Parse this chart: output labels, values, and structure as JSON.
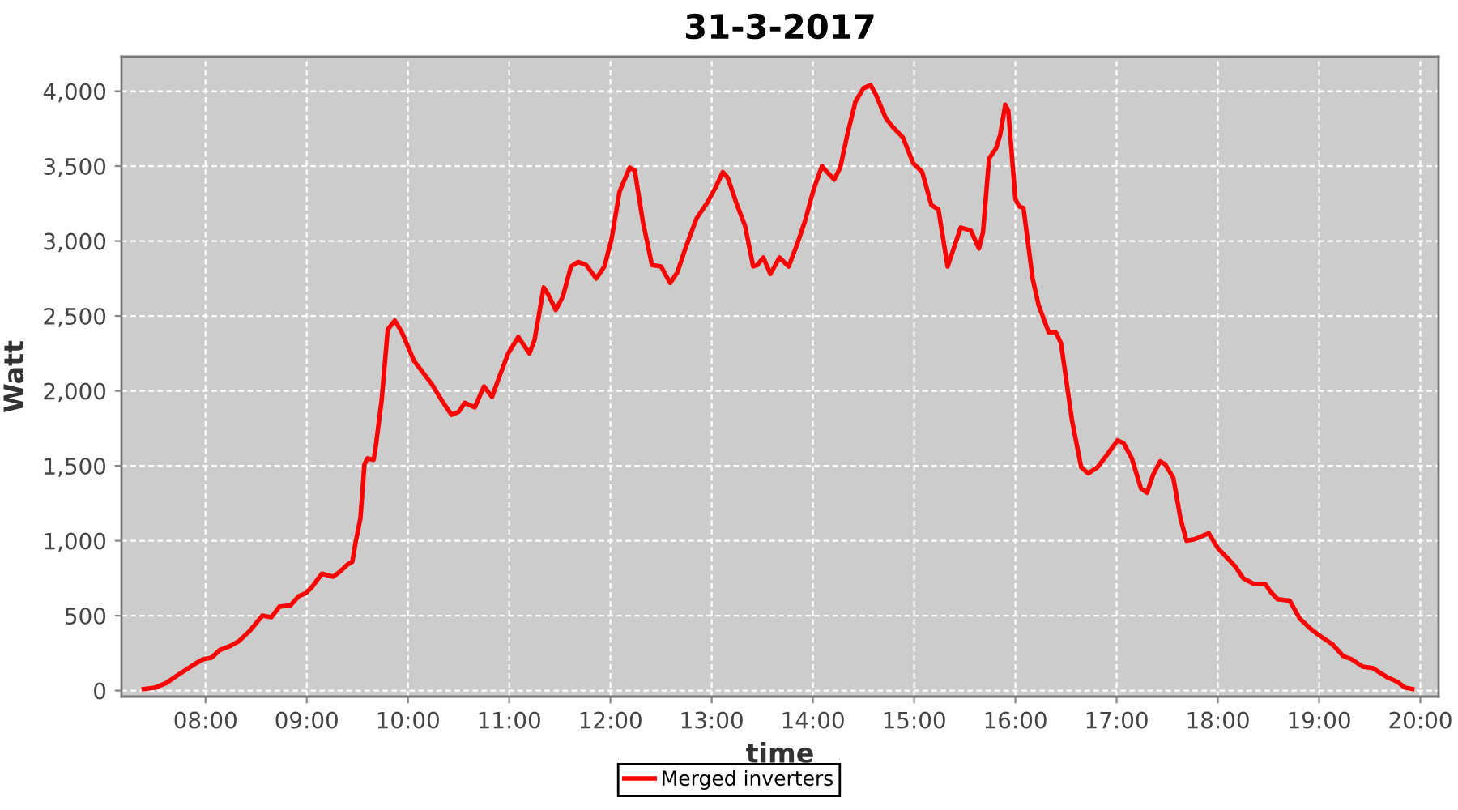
{
  "chart_data": {
    "type": "line",
    "title": "31-3-2017",
    "xlabel": "time",
    "ylabel": "Watt",
    "series": [
      {
        "name": "Merged inverters",
        "color": "#ff0000",
        "x": [
          7.39,
          7.5,
          7.61,
          7.74,
          7.9,
          7.98,
          8.06,
          8.14,
          8.25,
          8.33,
          8.44,
          8.56,
          8.65,
          8.73,
          8.84,
          8.92,
          8.99,
          9.05,
          9.15,
          9.26,
          9.32,
          9.4,
          9.45,
          9.48,
          9.53,
          9.57,
          9.6,
          9.66,
          9.68,
          9.74,
          9.8,
          9.87,
          9.94,
          10.06,
          10.23,
          10.34,
          10.43,
          10.5,
          10.56,
          10.66,
          10.75,
          10.83,
          10.9,
          10.99,
          11.09,
          11.2,
          11.25,
          11.34,
          11.38,
          11.46,
          11.53,
          11.61,
          11.68,
          11.76,
          11.86,
          11.94,
          12.01,
          12.09,
          12.19,
          12.24,
          12.32,
          12.41,
          12.5,
          12.59,
          12.66,
          12.74,
          12.85,
          12.96,
          13.04,
          13.11,
          13.16,
          13.24,
          13.33,
          13.41,
          13.45,
          13.51,
          13.58,
          13.67,
          13.76,
          13.84,
          13.92,
          14.01,
          14.09,
          14.14,
          14.21,
          14.27,
          14.34,
          14.42,
          14.5,
          14.57,
          14.62,
          14.72,
          14.79,
          14.89,
          14.99,
          15.08,
          15.17,
          15.24,
          15.33,
          15.39,
          15.46,
          15.56,
          15.64,
          15.68,
          15.74,
          15.81,
          15.85,
          15.9,
          15.93,
          16.0,
          16.04,
          16.08,
          16.17,
          16.23,
          16.33,
          16.4,
          16.45,
          16.56,
          16.65,
          16.72,
          16.81,
          16.89,
          17.01,
          17.07,
          17.15,
          17.24,
          17.3,
          17.36,
          17.43,
          17.48,
          17.56,
          17.63,
          17.69,
          17.77,
          17.91,
          18.0,
          18.1,
          18.17,
          18.25,
          18.36,
          18.47,
          18.52,
          18.59,
          18.71,
          18.81,
          18.92,
          19.02,
          19.13,
          19.24,
          19.32,
          19.43,
          19.53,
          19.67,
          19.77,
          19.85,
          19.92
        ],
        "values": [
          10,
          20,
          50,
          110,
          180,
          210,
          220,
          270,
          300,
          330,
          400,
          500,
          490,
          560,
          570,
          630,
          650,
          690,
          780,
          760,
          790,
          840,
          860,
          980,
          1150,
          1510,
          1550,
          1540,
          1620,
          1940,
          2410,
          2470,
          2390,
          2200,
          2050,
          1930,
          1840,
          1860,
          1920,
          1890,
          2030,
          1960,
          2090,
          2250,
          2360,
          2250,
          2340,
          2690,
          2650,
          2540,
          2630,
          2830,
          2860,
          2840,
          2750,
          2830,
          3010,
          3330,
          3490,
          3470,
          3130,
          2840,
          2830,
          2720,
          2790,
          2950,
          3150,
          3260,
          3360,
          3460,
          3420,
          3260,
          3100,
          2830,
          2840,
          2890,
          2780,
          2890,
          2830,
          2970,
          3130,
          3350,
          3500,
          3460,
          3410,
          3490,
          3710,
          3930,
          4020,
          4040,
          3980,
          3820,
          3760,
          3690,
          3520,
          3460,
          3240,
          3210,
          2830,
          2950,
          3090,
          3070,
          2950,
          3060,
          3550,
          3620,
          3710,
          3910,
          3870,
          3280,
          3230,
          3220,
          2750,
          2570,
          2390,
          2390,
          2320,
          1800,
          1490,
          1450,
          1490,
          1560,
          1670,
          1650,
          1550,
          1350,
          1320,
          1440,
          1530,
          1510,
          1420,
          1150,
          1000,
          1010,
          1050,
          950,
          880,
          830,
          750,
          710,
          710,
          660,
          610,
          600,
          480,
          410,
          360,
          310,
          230,
          210,
          160,
          150,
          90,
          60,
          20,
          10
        ]
      }
    ],
    "xlim": [
      7.17,
      20.18
    ],
    "xticks": [
      {
        "value": 8,
        "label": "08:00"
      },
      {
        "value": 9,
        "label": "09:00"
      },
      {
        "value": 10,
        "label": "10:00"
      },
      {
        "value": 11,
        "label": "11:00"
      },
      {
        "value": 12,
        "label": "12:00"
      },
      {
        "value": 13,
        "label": "13:00"
      },
      {
        "value": 14,
        "label": "14:00"
      },
      {
        "value": 15,
        "label": "15:00"
      },
      {
        "value": 16,
        "label": "16:00"
      },
      {
        "value": 17,
        "label": "17:00"
      },
      {
        "value": 18,
        "label": "18:00"
      },
      {
        "value": 19,
        "label": "19:00"
      },
      {
        "value": 20,
        "label": "20:00"
      }
    ],
    "ylim": [
      -40,
      4230
    ],
    "yticks": [
      0,
      500,
      {
        "value": 1000,
        "label": "1,000"
      },
      {
        "value": 1500,
        "label": "1,500"
      },
      {
        "value": 2000,
        "label": "2,000"
      },
      {
        "value": 2500,
        "label": "2,500"
      },
      {
        "value": 3000,
        "label": "3,000"
      },
      {
        "value": 3500,
        "label": "3,500"
      },
      {
        "value": 4000,
        "label": "4,000"
      }
    ],
    "grid": true,
    "legend": "bottom",
    "line_style": "solid"
  }
}
